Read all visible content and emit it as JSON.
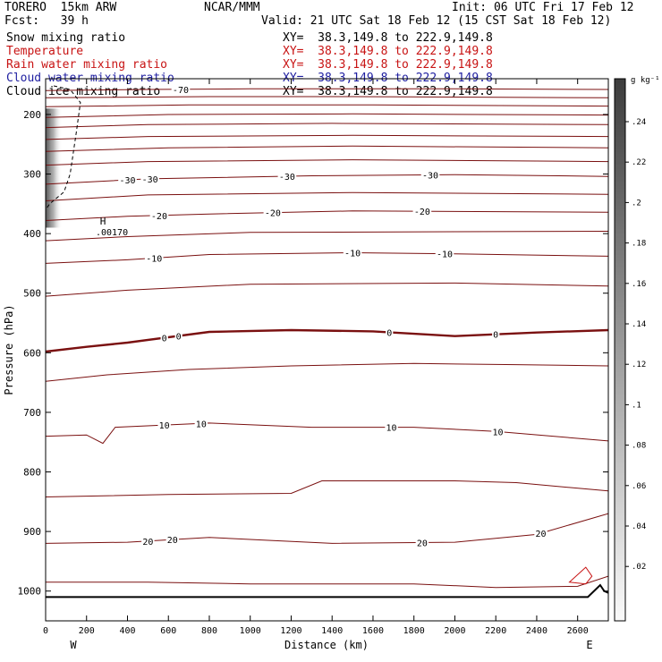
{
  "header": {
    "model": "TORERO  15km ARW",
    "center": "NCAR/MMM",
    "init": "Init: 06 UTC Fri 17 Feb 12",
    "fcst": "Fcst:   39 h",
    "valid": "Valid: 21 UTC Sat 18 Feb 12 (15 CST Sat 18 Feb 12)"
  },
  "fields": [
    {
      "name": "Snow mixing ratio",
      "xy": "XY=  38.3,149.8 to 222.9,149.8",
      "color": "#000000"
    },
    {
      "name": "Temperature",
      "xy": "XY=  38.3,149.8 to 222.9,149.8",
      "color": "#c81414"
    },
    {
      "name": "Rain water mixing ratio",
      "xy": "XY=  38.3,149.8 to 222.9,149.8",
      "color": "#c81414"
    },
    {
      "name": "Cloud water mixing ratio",
      "xy": "XY=  38.3,149.8 to 222.9,149.8",
      "color": "#1e1ea0"
    },
    {
      "name": "Cloud ice mixing ratio",
      "xy": "XY=  38.3,149.8 to 222.9,149.8",
      "color": "#000000"
    }
  ],
  "colorbar": {
    "unit": "g kg⁻¹",
    "ticks": [
      ".24",
      ".22",
      ".2",
      ".18",
      ".16",
      ".14",
      ".12",
      ".1",
      ".08",
      ".06",
      ".04",
      ".02"
    ]
  },
  "chart_data": {
    "type": "line",
    "xlabel": "Distance (km)",
    "ylabel": "Pressure (hPa)",
    "xlim": [
      0,
      2750
    ],
    "ylim": [
      1050,
      140
    ],
    "x_ticks": [
      "0",
      "200",
      "400",
      "600",
      "800",
      "1000",
      "1200",
      "1400",
      "1600",
      "1800",
      "2000",
      "2200",
      "2400",
      "2600"
    ],
    "y_ticks": [
      "200",
      "300",
      "400",
      "500",
      "600",
      "700",
      "800",
      "900",
      "1000"
    ],
    "left_end_label": "W",
    "right_end_label": "E",
    "max_marker": {
      "symbol": "H",
      "value": ".00170",
      "x": 280,
      "p": 385
    },
    "temperature_isotherms": [
      {
        "t": -70,
        "points": [
          [
            0,
            160
          ],
          [
            500,
            158
          ],
          [
            1000,
            157
          ],
          [
            2000,
            157
          ],
          [
            2750,
            158
          ]
        ],
        "labels": [
          {
            "x": 660,
            "text": "-70"
          }
        ]
      },
      {
        "t": -65,
        "points": [
          [
            0,
            172
          ],
          [
            800,
            170
          ],
          [
            1500,
            170
          ],
          [
            2750,
            172
          ]
        ]
      },
      {
        "t": -60,
        "points": [
          [
            0,
            187
          ],
          [
            700,
            184
          ],
          [
            1600,
            184
          ],
          [
            2750,
            186
          ]
        ]
      },
      {
        "t": -55,
        "points": [
          [
            0,
            205
          ],
          [
            600,
            200
          ],
          [
            1500,
            199
          ],
          [
            2750,
            201
          ]
        ]
      },
      {
        "t": -50,
        "points": [
          [
            0,
            222
          ],
          [
            500,
            217
          ],
          [
            1400,
            215
          ],
          [
            2750,
            217
          ]
        ]
      },
      {
        "t": -45,
        "points": [
          [
            0,
            242
          ],
          [
            500,
            237
          ],
          [
            1500,
            235
          ],
          [
            2750,
            237
          ]
        ]
      },
      {
        "t": -40,
        "points": [
          [
            0,
            262
          ],
          [
            600,
            256
          ],
          [
            1500,
            253
          ],
          [
            2750,
            256
          ]
        ]
      },
      {
        "t": -35,
        "points": [
          [
            0,
            285
          ],
          [
            500,
            279
          ],
          [
            1500,
            276
          ],
          [
            2750,
            279
          ]
        ]
      },
      {
        "t": -30,
        "points": [
          [
            0,
            317
          ],
          [
            500,
            308
          ],
          [
            1300,
            303
          ],
          [
            2000,
            301
          ],
          [
            2750,
            304
          ]
        ],
        "labels": [
          {
            "x": 400,
            "text": "-30"
          },
          {
            "x": 510,
            "text": "-30"
          },
          {
            "x": 1180,
            "text": "-30"
          },
          {
            "x": 1880,
            "text": "-30"
          }
        ]
      },
      {
        "t": -25,
        "points": [
          [
            0,
            345
          ],
          [
            500,
            335
          ],
          [
            1500,
            331
          ],
          [
            2750,
            334
          ]
        ]
      },
      {
        "t": -20,
        "points": [
          [
            0,
            378
          ],
          [
            400,
            371
          ],
          [
            800,
            367
          ],
          [
            1500,
            362
          ],
          [
            2750,
            364
          ]
        ],
        "labels": [
          {
            "x": 555,
            "text": "-20"
          },
          {
            "x": 1110,
            "text": "-20"
          },
          {
            "x": 1840,
            "text": "-20"
          }
        ]
      },
      {
        "t": -15,
        "points": [
          [
            0,
            412
          ],
          [
            400,
            405
          ],
          [
            1000,
            398
          ],
          [
            2750,
            396
          ]
        ]
      },
      {
        "t": -10,
        "points": [
          [
            0,
            450
          ],
          [
            400,
            444
          ],
          [
            800,
            435
          ],
          [
            1500,
            432
          ],
          [
            2000,
            434
          ],
          [
            2750,
            438
          ]
        ],
        "labels": [
          {
            "x": 530,
            "text": "-10"
          },
          {
            "x": 1500,
            "text": "-10"
          },
          {
            "x": 1950,
            "text": "-10"
          }
        ]
      },
      {
        "t": -5,
        "points": [
          [
            0,
            505
          ],
          [
            400,
            495
          ],
          [
            1000,
            485
          ],
          [
            2000,
            483
          ],
          [
            2750,
            488
          ]
        ]
      },
      {
        "t": 0,
        "bold": true,
        "points": [
          [
            0,
            598
          ],
          [
            200,
            590
          ],
          [
            400,
            583
          ],
          [
            800,
            565
          ],
          [
            1200,
            562
          ],
          [
            1600,
            564
          ],
          [
            2000,
            572
          ],
          [
            2400,
            566
          ],
          [
            2750,
            562
          ]
        ],
        "labels": [
          {
            "x": 580,
            "text": "0"
          },
          {
            "x": 650,
            "text": "0"
          },
          {
            "x": 1680,
            "text": "0"
          },
          {
            "x": 2200,
            "text": "0"
          }
        ]
      },
      {
        "t": 5,
        "points": [
          [
            0,
            648
          ],
          [
            300,
            637
          ],
          [
            700,
            628
          ],
          [
            1200,
            622
          ],
          [
            1800,
            618
          ],
          [
            2300,
            620
          ],
          [
            2750,
            622
          ]
        ]
      },
      {
        "t": 10,
        "points": [
          [
            0,
            740
          ],
          [
            200,
            738
          ],
          [
            280,
            752
          ],
          [
            340,
            725
          ],
          [
            800,
            718
          ],
          [
            1300,
            725
          ],
          [
            1800,
            725
          ],
          [
            2200,
            732
          ],
          [
            2750,
            748
          ]
        ],
        "labels": [
          {
            "x": 580,
            "text": "10"
          },
          {
            "x": 760,
            "text": "10"
          },
          {
            "x": 1690,
            "text": "10"
          },
          {
            "x": 2210,
            "text": "10"
          }
        ]
      },
      {
        "t": 15,
        "points": [
          [
            0,
            842
          ],
          [
            600,
            838
          ],
          [
            1200,
            836
          ],
          [
            1350,
            815
          ],
          [
            2000,
            815
          ],
          [
            2300,
            818
          ],
          [
            2750,
            832
          ]
        ]
      },
      {
        "t": 20,
        "points": [
          [
            0,
            920
          ],
          [
            400,
            918
          ],
          [
            800,
            910
          ],
          [
            1100,
            915
          ],
          [
            1400,
            920
          ],
          [
            2000,
            918
          ],
          [
            2400,
            905
          ],
          [
            2750,
            870
          ]
        ],
        "labels": [
          {
            "x": 500,
            "text": "20"
          },
          {
            "x": 620,
            "text": "20"
          },
          {
            "x": 1840,
            "text": "20"
          },
          {
            "x": 2420,
            "text": "20"
          }
        ]
      },
      {
        "t": 25,
        "points": [
          [
            0,
            985
          ],
          [
            500,
            985
          ],
          [
            1000,
            988
          ],
          [
            1800,
            988
          ],
          [
            2200,
            994
          ],
          [
            2600,
            992
          ],
          [
            2750,
            975
          ]
        ]
      }
    ],
    "rain_contour": {
      "points": [
        [
          2560,
          985
        ],
        [
          2640,
          960
        ],
        [
          2670,
          975
        ],
        [
          2640,
          988
        ]
      ]
    },
    "terrain": {
      "points": [
        [
          0,
          1010
        ],
        [
          2650,
          1010
        ],
        [
          2710,
          990
        ],
        [
          2730,
          1000
        ],
        [
          2750,
          1003
        ]
      ]
    },
    "cloud_ice_envelope": {
      "points": [
        [
          40,
          152
        ],
        [
          120,
          158
        ],
        [
          170,
          180
        ],
        [
          150,
          230
        ],
        [
          120,
          300
        ],
        [
          90,
          330
        ],
        [
          20,
          350
        ],
        [
          0,
          360
        ]
      ]
    },
    "snow_shading": {
      "x_center": 40,
      "p_top": 190,
      "p_bottom": 390,
      "max": 0.22
    }
  }
}
